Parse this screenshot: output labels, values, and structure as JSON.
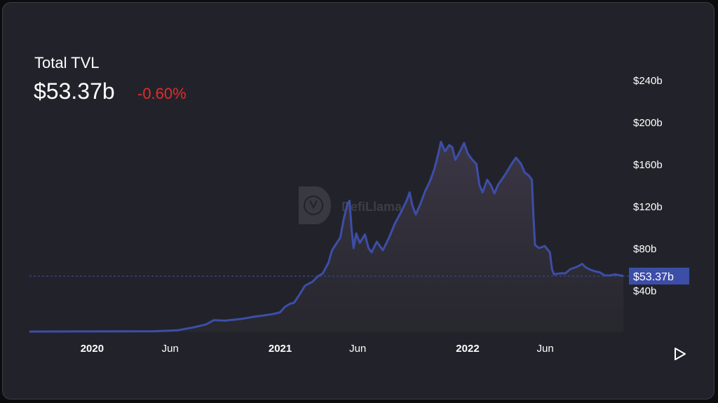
{
  "header": {
    "title": "Total TVL",
    "value": "$53.37b",
    "change": "-0.60%"
  },
  "watermark": "DefiLlama",
  "colors": {
    "line": "#3d4ea8",
    "change_negative": "#e02d2d",
    "current_label_bg": "#3d4ea8"
  },
  "icons": {
    "play": "play-icon",
    "watermark": "llama-logo-icon"
  },
  "chart_data": {
    "type": "area",
    "title": "Total TVL",
    "xlabel": "",
    "ylabel": "",
    "ylim": [
      0,
      260
    ],
    "y_unit": "$b",
    "yticks": [
      {
        "value": 40,
        "label": "$40b"
      },
      {
        "value": 80,
        "label": "$80b"
      },
      {
        "value": 120,
        "label": "$120b"
      },
      {
        "value": 160,
        "label": "$160b"
      },
      {
        "value": 200,
        "label": "$200b"
      },
      {
        "value": 240,
        "label": "$240b"
      }
    ],
    "xticks": [
      {
        "date": "2020-01-01",
        "label": "2020",
        "bold": true
      },
      {
        "date": "2020-06-01",
        "label": "Jun",
        "bold": false
      },
      {
        "date": "2021-01-01",
        "label": "2021",
        "bold": true
      },
      {
        "date": "2021-06-01",
        "label": "Jun",
        "bold": false
      },
      {
        "date": "2022-01-01",
        "label": "2022",
        "bold": true
      },
      {
        "date": "2022-06-01",
        "label": "Jun",
        "bold": false
      }
    ],
    "xlim": [
      "2019-09-01",
      "2022-10-31"
    ],
    "current": {
      "value": 53.37,
      "label": "$53.37b"
    },
    "grid": false,
    "legend": "none",
    "series": [
      {
        "points": [
          [
            "2019-09-01",
            0.6
          ],
          [
            "2019-12-01",
            0.7
          ],
          [
            "2020-03-01",
            0.8
          ],
          [
            "2020-05-01",
            0.9
          ],
          [
            "2020-06-15",
            1.8
          ],
          [
            "2020-07-15",
            4.5
          ],
          [
            "2020-08-10",
            7.5
          ],
          [
            "2020-08-25",
            11.5
          ],
          [
            "2020-09-15",
            11.0
          ],
          [
            "2020-10-15",
            12.5
          ],
          [
            "2020-11-15",
            15.0
          ],
          [
            "2020-12-01",
            16.0
          ],
          [
            "2020-12-20",
            17.5
          ],
          [
            "2021-01-01",
            19.0
          ],
          [
            "2021-01-10",
            24.0
          ],
          [
            "2021-01-20",
            27.0
          ],
          [
            "2021-01-28",
            28.0
          ],
          [
            "2021-02-08",
            36.0
          ],
          [
            "2021-02-18",
            44.0
          ],
          [
            "2021-02-25",
            46.0
          ],
          [
            "2021-03-05",
            48.0
          ],
          [
            "2021-03-15",
            53.0
          ],
          [
            "2021-03-25",
            56.0
          ],
          [
            "2021-04-05",
            66.0
          ],
          [
            "2021-04-12",
            78.0
          ],
          [
            "2021-04-20",
            84.0
          ],
          [
            "2021-04-28",
            90.0
          ],
          [
            "2021-05-05",
            108.0
          ],
          [
            "2021-05-12",
            122.0
          ],
          [
            "2021-05-16",
            125.0
          ],
          [
            "2021-05-20",
            98.0
          ],
          [
            "2021-05-24",
            80.0
          ],
          [
            "2021-05-29",
            94.0
          ],
          [
            "2021-06-05",
            85.0
          ],
          [
            "2021-06-15",
            93.0
          ],
          [
            "2021-06-22",
            80.0
          ],
          [
            "2021-06-28",
            76.0
          ],
          [
            "2021-07-08",
            86.0
          ],
          [
            "2021-07-20",
            78.0
          ],
          [
            "2021-08-01",
            90.0
          ],
          [
            "2021-08-12",
            103.0
          ],
          [
            "2021-08-25",
            115.0
          ],
          [
            "2021-09-05",
            126.0
          ],
          [
            "2021-09-10",
            133.0
          ],
          [
            "2021-09-15",
            121.0
          ],
          [
            "2021-09-22",
            112.0
          ],
          [
            "2021-10-01",
            122.0
          ],
          [
            "2021-10-10",
            134.0
          ],
          [
            "2021-10-20",
            144.0
          ],
          [
            "2021-10-28",
            155.0
          ],
          [
            "2021-11-05",
            170.0
          ],
          [
            "2021-11-10",
            181.0
          ],
          [
            "2021-11-18",
            172.0
          ],
          [
            "2021-11-26",
            178.0
          ],
          [
            "2021-12-02",
            176.0
          ],
          [
            "2021-12-08",
            164.0
          ],
          [
            "2021-12-15",
            170.0
          ],
          [
            "2021-12-25",
            180.0
          ],
          [
            "2022-01-01",
            170.0
          ],
          [
            "2022-01-10",
            164.0
          ],
          [
            "2022-01-18",
            160.0
          ],
          [
            "2022-01-24",
            140.0
          ],
          [
            "2022-01-30",
            133.0
          ],
          [
            "2022-02-08",
            145.0
          ],
          [
            "2022-02-15",
            140.0
          ],
          [
            "2022-02-22",
            132.0
          ],
          [
            "2022-03-01",
            140.0
          ],
          [
            "2022-03-15",
            150.0
          ],
          [
            "2022-03-30",
            162.0
          ],
          [
            "2022-04-05",
            166.0
          ],
          [
            "2022-04-15",
            160.0
          ],
          [
            "2022-04-22",
            152.0
          ],
          [
            "2022-04-30",
            149.0
          ],
          [
            "2022-05-06",
            145.0
          ],
          [
            "2022-05-09",
            110.0
          ],
          [
            "2022-05-12",
            83.0
          ],
          [
            "2022-05-20",
            80.0
          ],
          [
            "2022-05-31",
            82.0
          ],
          [
            "2022-06-10",
            76.0
          ],
          [
            "2022-06-14",
            60.0
          ],
          [
            "2022-06-18",
            55.0
          ],
          [
            "2022-06-30",
            56.0
          ],
          [
            "2022-07-10",
            56.0
          ],
          [
            "2022-07-20",
            60.0
          ],
          [
            "2022-08-01",
            62.0
          ],
          [
            "2022-08-12",
            65.0
          ],
          [
            "2022-08-18",
            62.0
          ],
          [
            "2022-08-25",
            60.0
          ],
          [
            "2022-09-05",
            58.0
          ],
          [
            "2022-09-15",
            57.0
          ],
          [
            "2022-09-25",
            54.0
          ],
          [
            "2022-10-05",
            54.0
          ],
          [
            "2022-10-15",
            55.0
          ],
          [
            "2022-10-31",
            53.37
          ]
        ]
      }
    ]
  }
}
